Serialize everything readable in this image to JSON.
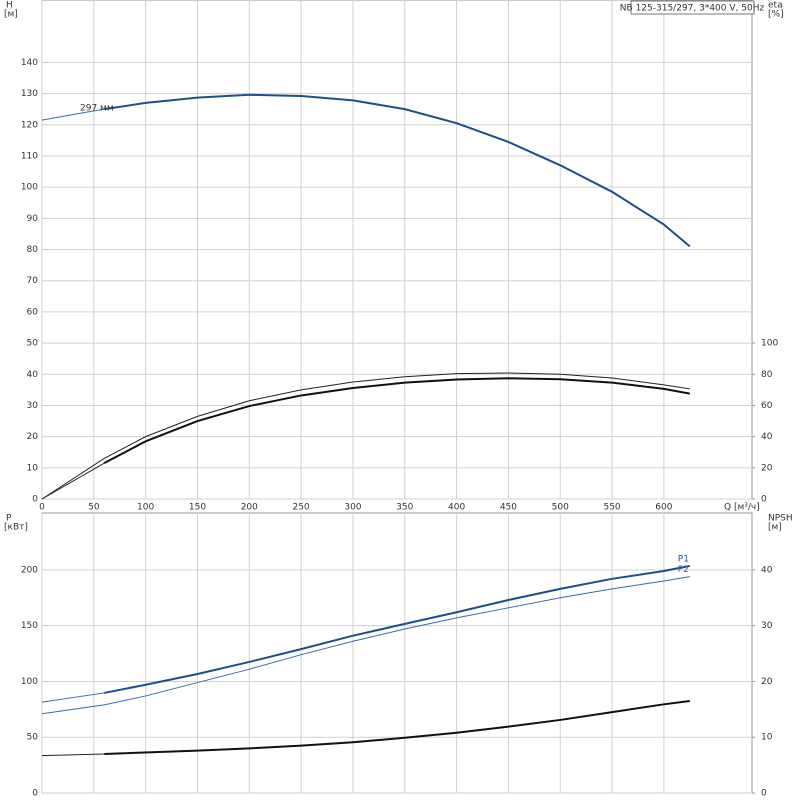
{
  "chart_data": [
    {
      "type": "line",
      "title": "NB 125-315/297, 3*400 V, 50Hz",
      "x_label": "Q [м³/ч]",
      "y_label": "H",
      "y_unit": "[м]",
      "y2_label": "eta",
      "y2_unit": "[%]",
      "xlim": [
        0,
        685
      ],
      "xticks": [
        0,
        50,
        100,
        150,
        200,
        250,
        300,
        350,
        400,
        450,
        500,
        550,
        600
      ],
      "ylim": [
        0,
        160
      ],
      "yticks": [
        0,
        10,
        20,
        30,
        40,
        50,
        60,
        70,
        80,
        90,
        100,
        110,
        120,
        130,
        140
      ],
      "y2lim": [
        0,
        320
      ],
      "y2ticks": [
        0,
        20,
        40,
        60,
        80,
        100
      ],
      "grid": true,
      "annotation": "297 мм",
      "series": [
        {
          "color": "#3a6aa6",
          "width": 1,
          "x": [
            0,
            30,
            60
          ],
          "values": [
            121.5,
            123.3,
            125
          ]
        },
        {
          "color": "#1f4e8c",
          "width": 2,
          "x": [
            60,
            100,
            150,
            200,
            250,
            300,
            350,
            400,
            450,
            500,
            550,
            600,
            625
          ],
          "values": [
            125,
            127,
            128.7,
            129.6,
            129.2,
            127.8,
            125,
            120.5,
            114.5,
            107,
            98.5,
            88,
            81
          ]
        },
        {
          "color": "#222222",
          "width": 1,
          "axis": "y2",
          "x": [
            0,
            60,
            100,
            150,
            200,
            250,
            300,
            350,
            400,
            450,
            500,
            550,
            600,
            625
          ],
          "values": [
            0,
            26,
            40,
            53,
            63,
            70,
            75,
            78.4,
            80.4,
            80.8,
            80,
            77.6,
            73.2,
            70.6
          ]
        },
        {
          "color": "#222222",
          "width": 1,
          "axis": "y2",
          "x": [
            0,
            60
          ],
          "values": [
            0,
            23
          ]
        },
        {
          "color": "#111111",
          "width": 2,
          "axis": "y2",
          "x": [
            60,
            100,
            150,
            200,
            250,
            300,
            350,
            400,
            450,
            500,
            550,
            600,
            625
          ],
          "values": [
            23,
            37,
            50,
            59.6,
            66.4,
            71.2,
            74.6,
            76.6,
            77.4,
            76.8,
            74.6,
            70.6,
            67.6
          ]
        }
      ]
    },
    {
      "type": "line",
      "y_label": "P",
      "y_unit": "[кВт]",
      "y2_label": "NPSH",
      "y2_unit": "[м]",
      "xlim": [
        0,
        685
      ],
      "xticks": [
        0,
        50,
        100,
        150,
        200,
        250,
        300,
        350,
        400,
        450,
        500,
        550,
        600
      ],
      "ylim": [
        0,
        251
      ],
      "yticks": [
        0,
        50,
        100,
        150,
        200
      ],
      "y2lim": [
        0,
        50.2
      ],
      "y2ticks": [
        0,
        10,
        20,
        30,
        40
      ],
      "grid": true,
      "series": [
        {
          "color": "#3a6aa6",
          "width": 1,
          "x": [
            0,
            60
          ],
          "values": [
            81.5,
            89.7
          ]
        },
        {
          "name": "P1",
          "color": "#1f4e8c",
          "width": 2,
          "x": [
            60,
            100,
            150,
            200,
            250,
            300,
            350,
            400,
            450,
            500,
            550,
            600,
            625
          ],
          "values": [
            89.7,
            97,
            106.7,
            117.5,
            129,
            141,
            151.6,
            162,
            173,
            183,
            192,
            199,
            203.6
          ]
        },
        {
          "name": "P2",
          "color": "#3a6aa6",
          "width": 1,
          "x": [
            0,
            60,
            100,
            150,
            200,
            250,
            300,
            350,
            400,
            450,
            500,
            550,
            600,
            625
          ],
          "values": [
            71,
            79,
            87,
            99,
            111,
            124,
            136,
            147,
            157,
            166,
            175,
            183,
            190,
            194
          ]
        },
        {
          "color": "#222222",
          "width": 1,
          "axis": "y2",
          "x": [
            0,
            60
          ],
          "values": [
            6.7,
            7
          ]
        },
        {
          "color": "#111111",
          "width": 2,
          "axis": "y2",
          "x": [
            60,
            150,
            200,
            250,
            300,
            350,
            400,
            450,
            500,
            550,
            600,
            625
          ],
          "values": [
            7,
            7.6,
            8,
            8.5,
            9.1,
            9.9,
            10.8,
            11.9,
            13.1,
            14.5,
            15.9,
            16.5
          ]
        }
      ]
    }
  ]
}
